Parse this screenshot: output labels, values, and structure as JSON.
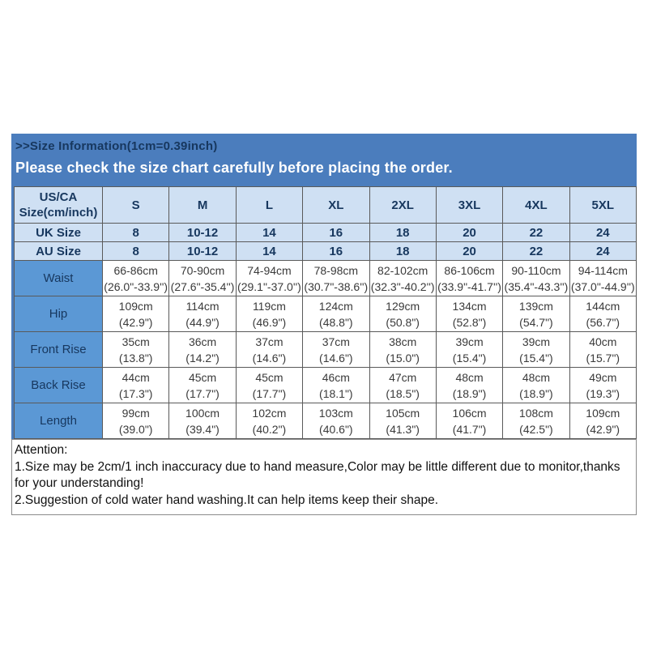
{
  "header": {
    "title": ">>Size Information(1cm=0.39inch)",
    "subtitle": "Please check the size chart carefully before placing the order."
  },
  "size_chart": {
    "corner_header": [
      "US/CA",
      "Size(cm/inch)"
    ],
    "size_columns": [
      "S",
      "M",
      "L",
      "XL",
      "2XL",
      "3XL",
      "4XL",
      "5XL"
    ],
    "simple_rows": [
      {
        "label": "UK Size",
        "values": [
          "8",
          "10-12",
          "14",
          "16",
          "18",
          "20",
          "22",
          "24"
        ]
      },
      {
        "label": "AU Size",
        "values": [
          "8",
          "10-12",
          "14",
          "16",
          "18",
          "20",
          "22",
          "24"
        ]
      }
    ],
    "measure_rows": [
      {
        "label": "Waist",
        "cm": [
          "66-86cm",
          "70-90cm",
          "74-94cm",
          "78-98cm",
          "82-102cm",
          "86-106cm",
          "90-110cm",
          "94-114cm"
        ],
        "inch": [
          "(26.0\"-33.9'')",
          "(27.6\"-35.4'')",
          "(29.1\"-37.0'')",
          "(30.7\"-38.6'')",
          "(32.3\"-40.2'')",
          "(33.9\"-41.7'')",
          "(35.4\"-43.3'')",
          "(37.0\"-44.9'')"
        ]
      },
      {
        "label": "Hip",
        "cm": [
          "109cm",
          "114cm",
          "119cm",
          "124cm",
          "129cm",
          "134cm",
          "139cm",
          "144cm"
        ],
        "inch": [
          "(42.9\")",
          "(44.9\")",
          "(46.9\")",
          "(48.8\")",
          "(50.8\")",
          "(52.8\")",
          "(54.7\")",
          "(56.7\")"
        ]
      },
      {
        "label": "Front Rise",
        "cm": [
          "35cm",
          "36cm",
          "37cm",
          "37cm",
          "38cm",
          "39cm",
          "39cm",
          "40cm"
        ],
        "inch": [
          "(13.8\")",
          "(14.2\")",
          "(14.6\")",
          "(14.6\")",
          "(15.0\")",
          "(15.4\")",
          "(15.4\")",
          "(15.7\")"
        ]
      },
      {
        "label": "Back Rise",
        "cm": [
          "44cm",
          "45cm",
          "45cm",
          "46cm",
          "47cm",
          "48cm",
          "48cm",
          "49cm"
        ],
        "inch": [
          "(17.3\")",
          "(17.7\")",
          "(17.7\")",
          "(18.1\")",
          "(18.5\")",
          "(18.9\")",
          "(18.9\")",
          "(19.3\")"
        ]
      },
      {
        "label": "Length",
        "cm": [
          "99cm",
          "100cm",
          "102cm",
          "103cm",
          "105cm",
          "106cm",
          "108cm",
          "109cm"
        ],
        "inch": [
          "(39.0\")",
          "(39.4\")",
          "(40.2\")",
          "(40.6\")",
          "(41.3\")",
          "(41.7\")",
          "(42.5\")",
          "(42.9\")"
        ]
      }
    ]
  },
  "attention": {
    "heading": "Attention:",
    "notes": [
      "1.Size may be 2cm/1 inch inaccuracy due to hand measure,Color may be little different due to monitor,thanks for your understanding!",
      "2.Suggestion of cold water hand washing.It can help items keep their shape."
    ]
  },
  "colors": {
    "banner_blue": "#4b7dbd",
    "light_blue_cell": "#cfe0f3",
    "row_header_blue": "#5b98d5",
    "navy_text": "#17375e",
    "cell_text": "#3a3a3a"
  }
}
